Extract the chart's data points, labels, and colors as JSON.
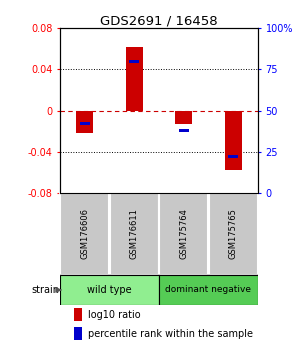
{
  "title": "GDS2691 / 16458",
  "samples": [
    "GSM176606",
    "GSM176611",
    "GSM175764",
    "GSM175765"
  ],
  "log10_ratio": [
    -0.022,
    0.062,
    -0.013,
    -0.058
  ],
  "percentile_rank": [
    0.42,
    0.8,
    0.38,
    0.22
  ],
  "ylim": [
    -0.08,
    0.08
  ],
  "yticks_left": [
    -0.08,
    -0.04,
    0,
    0.04,
    0.08
  ],
  "yticks_right": [
    0,
    25,
    50,
    75,
    100
  ],
  "bar_color_red": "#CC0000",
  "bar_color_blue": "#0000CC",
  "zero_line_color": "#CC0000",
  "bg_label": "#C8C8C8",
  "bg_group_wt": "#90EE90",
  "bg_group_dn": "#55CC55",
  "bar_width": 0.35,
  "blue_bar_width": 0.2
}
